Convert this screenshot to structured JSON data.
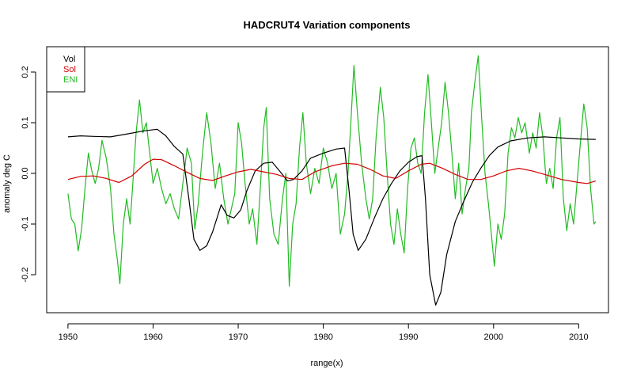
{
  "chart_data": {
    "type": "line",
    "title": "HADCRUT4 Variation components",
    "xlabel": "range(x)",
    "ylabel": "anomaly deg C",
    "xlim": [
      1947.5,
      2013.5
    ],
    "ylim": [
      -0.275,
      0.25
    ],
    "x_ticks": [
      1950,
      1960,
      1970,
      1980,
      1990,
      2000,
      2010
    ],
    "x_tick_labels": [
      "1950",
      "1960",
      "1970",
      "1980",
      "1990",
      "2000",
      "2010"
    ],
    "y_ticks": [
      -0.2,
      -0.1,
      0.0,
      0.1,
      0.2
    ],
    "y_tick_labels": [
      "-0.2",
      "-0.1",
      "0.0",
      "0.1",
      "0.2"
    ],
    "grid": false,
    "legend": {
      "position": "top-left",
      "entries": [
        "Vol",
        "Sol",
        "ENI"
      ]
    },
    "series": [
      {
        "name": "Vol",
        "color": "#000000",
        "points": [
          [
            1950.0,
            0.072
          ],
          [
            1951.5,
            0.074
          ],
          [
            1953.0,
            0.073
          ],
          [
            1955.0,
            0.072
          ],
          [
            1957.0,
            0.078
          ],
          [
            1959.0,
            0.084
          ],
          [
            1960.5,
            0.087
          ],
          [
            1961.5,
            0.074
          ],
          [
            1962.5,
            0.053
          ],
          [
            1963.5,
            0.038
          ],
          [
            1964.2,
            -0.05
          ],
          [
            1964.8,
            -0.13
          ],
          [
            1965.5,
            -0.152
          ],
          [
            1966.3,
            -0.143
          ],
          [
            1967.0,
            -0.115
          ],
          [
            1968.0,
            -0.062
          ],
          [
            1968.7,
            -0.083
          ],
          [
            1969.5,
            -0.088
          ],
          [
            1970.3,
            -0.072
          ],
          [
            1971.0,
            -0.035
          ],
          [
            1972.0,
            0.005
          ],
          [
            1973.0,
            0.02
          ],
          [
            1974.0,
            0.022
          ],
          [
            1975.0,
            0.002
          ],
          [
            1975.8,
            -0.015
          ],
          [
            1976.5,
            -0.012
          ],
          [
            1977.5,
            0.005
          ],
          [
            1978.5,
            0.03
          ],
          [
            1980.0,
            0.04
          ],
          [
            1981.5,
            0.048
          ],
          [
            1982.5,
            0.05
          ],
          [
            1983.0,
            -0.03
          ],
          [
            1983.5,
            -0.12
          ],
          [
            1984.1,
            -0.152
          ],
          [
            1985.0,
            -0.13
          ],
          [
            1986.0,
            -0.088
          ],
          [
            1987.0,
            -0.05
          ],
          [
            1988.0,
            -0.02
          ],
          [
            1989.0,
            0.005
          ],
          [
            1990.0,
            0.022
          ],
          [
            1991.0,
            0.033
          ],
          [
            1991.6,
            0.035
          ],
          [
            1992.0,
            -0.05
          ],
          [
            1992.5,
            -0.2
          ],
          [
            1993.2,
            -0.26
          ],
          [
            1993.8,
            -0.235
          ],
          [
            1994.5,
            -0.16
          ],
          [
            1995.5,
            -0.095
          ],
          [
            1996.5,
            -0.055
          ],
          [
            1997.5,
            -0.018
          ],
          [
            1998.5,
            0.01
          ],
          [
            1999.5,
            0.035
          ],
          [
            2000.5,
            0.052
          ],
          [
            2002.0,
            0.064
          ],
          [
            2004.0,
            0.07
          ],
          [
            2006.0,
            0.072
          ],
          [
            2008.0,
            0.07
          ],
          [
            2010.0,
            0.068
          ],
          [
            2012.0,
            0.067
          ]
        ]
      },
      {
        "name": "Sol",
        "color": "#d40000",
        "points": [
          [
            1950.0,
            -0.012
          ],
          [
            1951.5,
            -0.006
          ],
          [
            1953.0,
            -0.005
          ],
          [
            1954.5,
            -0.01
          ],
          [
            1956.0,
            -0.018
          ],
          [
            1957.5,
            -0.005
          ],
          [
            1959.0,
            0.018
          ],
          [
            1960.0,
            0.028
          ],
          [
            1961.0,
            0.027
          ],
          [
            1962.5,
            0.015
          ],
          [
            1964.0,
            0.002
          ],
          [
            1965.5,
            -0.01
          ],
          [
            1967.0,
            -0.014
          ],
          [
            1968.5,
            -0.005
          ],
          [
            1970.0,
            0.003
          ],
          [
            1971.5,
            0.008
          ],
          [
            1973.0,
            0.003
          ],
          [
            1974.5,
            -0.002
          ],
          [
            1976.0,
            -0.01
          ],
          [
            1977.5,
            -0.012
          ],
          [
            1979.0,
            0.003
          ],
          [
            1981.0,
            0.015
          ],
          [
            1982.5,
            0.02
          ],
          [
            1984.0,
            0.018
          ],
          [
            1985.5,
            0.008
          ],
          [
            1987.0,
            -0.005
          ],
          [
            1988.5,
            -0.01
          ],
          [
            1990.0,
            0.005
          ],
          [
            1991.5,
            0.018
          ],
          [
            1992.5,
            0.02
          ],
          [
            1994.0,
            0.01
          ],
          [
            1995.5,
            -0.002
          ],
          [
            1997.0,
            -0.012
          ],
          [
            1998.5,
            -0.012
          ],
          [
            2000.0,
            -0.005
          ],
          [
            2001.5,
            0.005
          ],
          [
            2003.0,
            0.01
          ],
          [
            2004.5,
            0.005
          ],
          [
            2006.0,
            -0.002
          ],
          [
            2008.0,
            -0.012
          ],
          [
            2010.0,
            -0.018
          ],
          [
            2011.0,
            -0.02
          ],
          [
            2012.0,
            -0.015
          ]
        ]
      },
      {
        "name": "ENI",
        "color": "#22bb22",
        "points": [
          [
            1950.0,
            -0.04
          ],
          [
            1950.4,
            -0.09
          ],
          [
            1950.8,
            -0.1
          ],
          [
            1951.2,
            -0.153
          ],
          [
            1951.6,
            -0.11
          ],
          [
            1952.0,
            -0.03
          ],
          [
            1952.4,
            0.04
          ],
          [
            1952.8,
            0.005
          ],
          [
            1953.2,
            -0.02
          ],
          [
            1953.6,
            0.01
          ],
          [
            1954.0,
            0.065
          ],
          [
            1954.5,
            0.03
          ],
          [
            1955.0,
            -0.03
          ],
          [
            1955.4,
            -0.12
          ],
          [
            1955.8,
            -0.17
          ],
          [
            1956.1,
            -0.218
          ],
          [
            1956.5,
            -0.1
          ],
          [
            1956.9,
            -0.05
          ],
          [
            1957.3,
            -0.1
          ],
          [
            1957.7,
            0.0
          ],
          [
            1958.0,
            0.08
          ],
          [
            1958.4,
            0.145
          ],
          [
            1958.8,
            0.08
          ],
          [
            1959.2,
            0.1
          ],
          [
            1959.6,
            0.04
          ],
          [
            1960.0,
            -0.02
          ],
          [
            1960.5,
            0.01
          ],
          [
            1961.0,
            -0.03
          ],
          [
            1961.5,
            -0.06
          ],
          [
            1962.0,
            -0.04
          ],
          [
            1962.5,
            -0.07
          ],
          [
            1963.0,
            -0.09
          ],
          [
            1963.5,
            -0.02
          ],
          [
            1964.0,
            0.05
          ],
          [
            1964.5,
            0.02
          ],
          [
            1964.9,
            -0.11
          ],
          [
            1965.3,
            -0.06
          ],
          [
            1965.8,
            0.04
          ],
          [
            1966.3,
            0.12
          ],
          [
            1966.8,
            0.06
          ],
          [
            1967.3,
            -0.03
          ],
          [
            1967.8,
            0.02
          ],
          [
            1968.3,
            -0.05
          ],
          [
            1968.8,
            -0.1
          ],
          [
            1969.2,
            -0.07
          ],
          [
            1969.6,
            -0.04
          ],
          [
            1970.0,
            0.1
          ],
          [
            1970.4,
            0.06
          ],
          [
            1970.8,
            -0.02
          ],
          [
            1971.3,
            -0.1
          ],
          [
            1971.7,
            -0.07
          ],
          [
            1972.2,
            -0.14
          ],
          [
            1972.7,
            0.0
          ],
          [
            1973.0,
            0.09
          ],
          [
            1973.3,
            0.13
          ],
          [
            1973.7,
            -0.05
          ],
          [
            1974.2,
            -0.12
          ],
          [
            1974.7,
            -0.14
          ],
          [
            1975.2,
            -0.05
          ],
          [
            1975.6,
            0.0
          ],
          [
            1976.0,
            -0.223
          ],
          [
            1976.4,
            -0.1
          ],
          [
            1976.8,
            -0.06
          ],
          [
            1977.2,
            0.05
          ],
          [
            1977.6,
            0.12
          ],
          [
            1978.0,
            0.02
          ],
          [
            1978.5,
            -0.04
          ],
          [
            1979.0,
            0.01
          ],
          [
            1979.5,
            -0.02
          ],
          [
            1980.0,
            0.05
          ],
          [
            1980.5,
            0.02
          ],
          [
            1981.0,
            -0.03
          ],
          [
            1981.5,
            0.0
          ],
          [
            1982.0,
            -0.12
          ],
          [
            1982.5,
            -0.08
          ],
          [
            1982.9,
            0.0
          ],
          [
            1983.3,
            0.12
          ],
          [
            1983.6,
            0.213
          ],
          [
            1984.0,
            0.12
          ],
          [
            1984.5,
            0.02
          ],
          [
            1985.0,
            -0.05
          ],
          [
            1985.4,
            -0.09
          ],
          [
            1985.8,
            -0.05
          ],
          [
            1986.2,
            0.07
          ],
          [
            1986.7,
            0.17
          ],
          [
            1987.1,
            0.11
          ],
          [
            1987.5,
            0.0
          ],
          [
            1987.9,
            -0.1
          ],
          [
            1988.3,
            -0.14
          ],
          [
            1988.7,
            -0.07
          ],
          [
            1989.1,
            -0.12
          ],
          [
            1989.5,
            -0.157
          ],
          [
            1989.9,
            -0.03
          ],
          [
            1990.3,
            0.05
          ],
          [
            1990.7,
            0.07
          ],
          [
            1991.1,
            0.02
          ],
          [
            1991.5,
            0.0
          ],
          [
            1991.9,
            0.12
          ],
          [
            1992.3,
            0.195
          ],
          [
            1992.7,
            0.1
          ],
          [
            1993.1,
            0.0
          ],
          [
            1993.5,
            0.05
          ],
          [
            1993.9,
            0.1
          ],
          [
            1994.3,
            0.18
          ],
          [
            1994.7,
            0.12
          ],
          [
            1995.1,
            0.04
          ],
          [
            1995.5,
            -0.05
          ],
          [
            1995.9,
            0.02
          ],
          [
            1996.3,
            -0.08
          ],
          [
            1996.7,
            -0.03
          ],
          [
            1997.1,
            0.01
          ],
          [
            1997.4,
            0.12
          ],
          [
            1997.8,
            0.18
          ],
          [
            1998.2,
            0.232
          ],
          [
            1998.6,
            0.11
          ],
          [
            1999.0,
            0.0
          ],
          [
            1999.4,
            -0.06
          ],
          [
            1999.8,
            -0.13
          ],
          [
            2000.1,
            -0.183
          ],
          [
            2000.5,
            -0.1
          ],
          [
            2000.9,
            -0.13
          ],
          [
            2001.3,
            -0.08
          ],
          [
            2001.7,
            0.04
          ],
          [
            2002.1,
            0.09
          ],
          [
            2002.5,
            0.07
          ],
          [
            2002.9,
            0.11
          ],
          [
            2003.3,
            0.08
          ],
          [
            2003.7,
            0.1
          ],
          [
            2004.2,
            0.04
          ],
          [
            2004.6,
            0.08
          ],
          [
            2005.0,
            0.05
          ],
          [
            2005.4,
            0.12
          ],
          [
            2005.8,
            0.07
          ],
          [
            2006.2,
            -0.02
          ],
          [
            2006.6,
            0.01
          ],
          [
            2007.0,
            -0.03
          ],
          [
            2007.4,
            0.07
          ],
          [
            2007.8,
            0.11
          ],
          [
            2008.2,
            -0.05
          ],
          [
            2008.6,
            -0.113
          ],
          [
            2009.0,
            -0.06
          ],
          [
            2009.4,
            -0.1
          ],
          [
            2009.8,
            -0.02
          ],
          [
            2010.2,
            0.06
          ],
          [
            2010.6,
            0.137
          ],
          [
            2011.0,
            0.09
          ],
          [
            2011.4,
            -0.03
          ],
          [
            2011.8,
            -0.1
          ],
          [
            2012.0,
            -0.095
          ]
        ]
      }
    ]
  }
}
